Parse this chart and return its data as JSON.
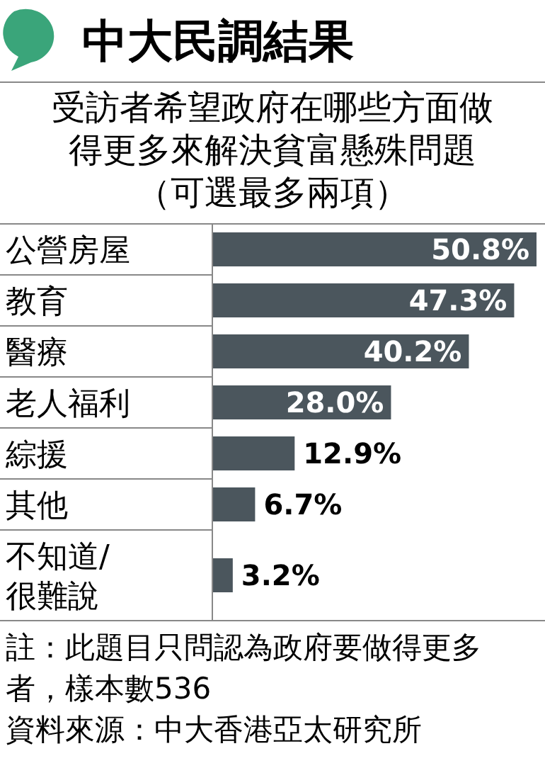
{
  "chart_data": {
    "type": "bar",
    "orientation": "horizontal",
    "title": "中大民調結果",
    "subtitle": "受訪者希望政府在哪些方面做得更多來解決貧富懸殊問題（可選最多兩項）",
    "categories": [
      "公營房屋",
      "教育",
      "醫療",
      "老人福利",
      "綜援",
      "其他",
      "不知道/很難說"
    ],
    "values": [
      50.8,
      47.3,
      40.2,
      28.0,
      12.9,
      6.7,
      3.2
    ],
    "value_labels": [
      "50.8%",
      "47.3%",
      "40.2%",
      "28.0%",
      "12.9%",
      "6.7%",
      "3.2%"
    ],
    "color": "#4b565d",
    "annotations": [
      "註：此題目只問認為政府要做得更多者，樣本數536",
      "資料來源：中大香港亞太研究所"
    ]
  }
}
